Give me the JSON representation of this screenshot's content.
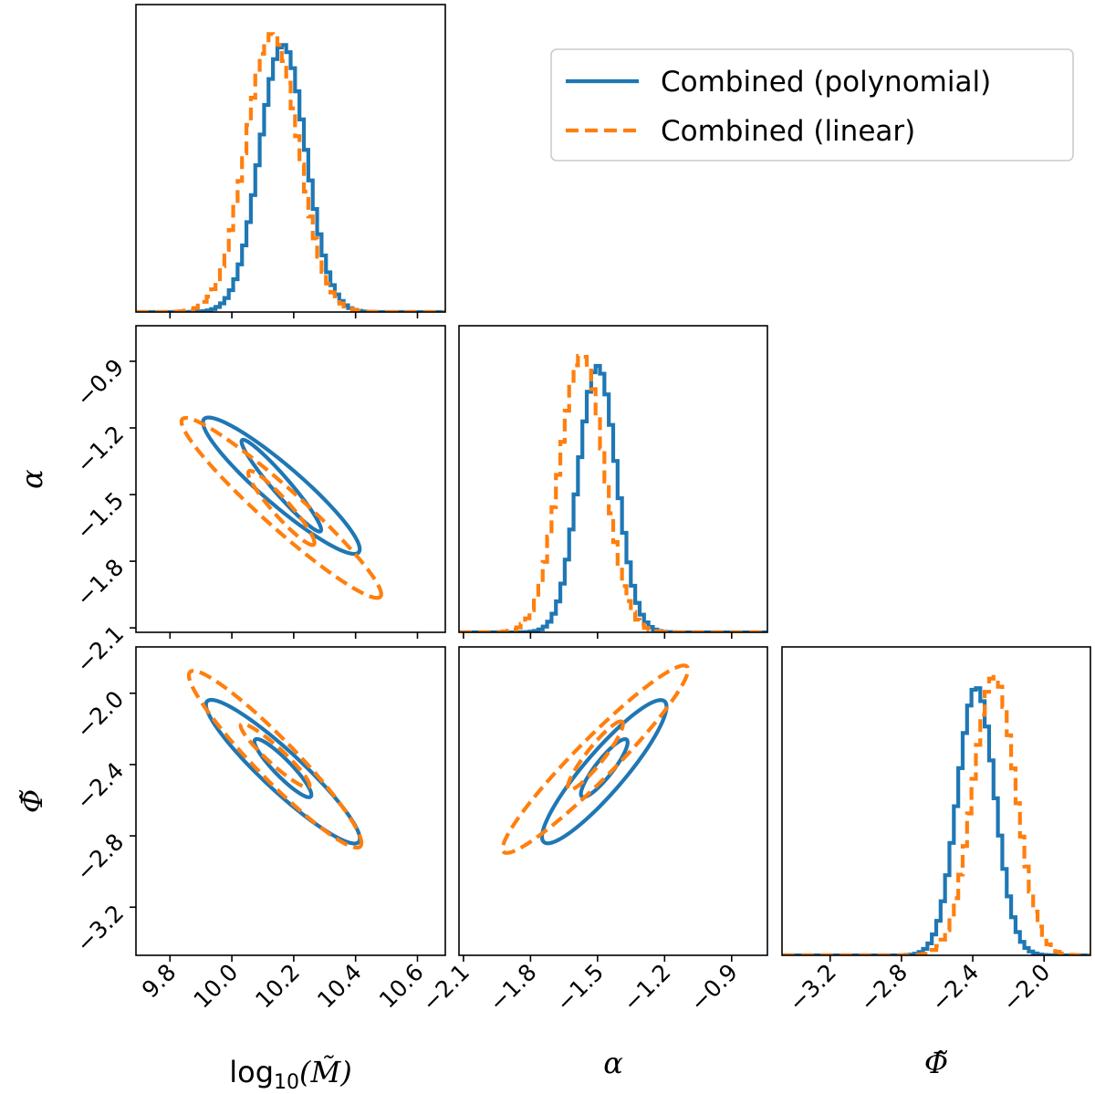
{
  "chart_data": {
    "type": "corner",
    "parameters": [
      {
        "key": "logM",
        "label_prefix": "log",
        "label_sub": "10",
        "label_main": "(M̃)",
        "range": [
          9.69,
          10.69
        ],
        "ticks": [
          "9.8",
          "10.0",
          "10.2",
          "10.4",
          "10.6"
        ],
        "tick_values": [
          9.8,
          10.0,
          10.2,
          10.4,
          10.6
        ]
      },
      {
        "key": "alpha",
        "label": "α",
        "range": [
          -2.12,
          -0.74
        ],
        "ticks": [
          "−2.1",
          "−1.8",
          "−1.5",
          "−1.2",
          "−0.9"
        ],
        "tick_values": [
          -2.1,
          -1.8,
          -1.5,
          -1.2,
          -0.9
        ]
      },
      {
        "key": "phi",
        "label": "Φ̃",
        "range": [
          -3.47,
          -1.74
        ],
        "ticks": [
          "−3.2",
          "−2.8",
          "−2.4",
          "−2.0"
        ],
        "tick_values": [
          -3.2,
          -2.8,
          -2.4,
          -2.0
        ]
      }
    ],
    "legend": {
      "placement": "top-right",
      "entries": [
        {
          "name": "Combined (polynomial)",
          "color": "#1f77b4",
          "style": "solid"
        },
        {
          "name": "Combined (linear)",
          "color": "#ff7f0e",
          "style": "dashed"
        }
      ]
    },
    "series": [
      {
        "name": "Combined (polynomial)",
        "color": "#1f77b4",
        "style": "solid",
        "marginals": [
          {
            "mean": 10.165,
            "sd": 0.075
          },
          {
            "mean": -1.5,
            "sd": 0.085
          },
          {
            "mean": -2.38,
            "sd": 0.105
          }
        ],
        "contours": [
          {
            "x": "logM",
            "y": "alpha",
            "levels": [
              {
                "cx": 10.16,
                "cy": -1.46,
                "rx": 0.08,
                "ry": 0.12,
                "angle": -0.71,
                "ex": 0.127,
                "ey": -0.205
              },
              {
                "cx": 10.16,
                "cy": -1.46,
                "rx": 0.17,
                "ry": 0.26,
                "angle": -0.71,
                "ex": 0.25,
                "ey": -0.3
              }
            ]
          },
          {
            "x": "logM",
            "y": "phi",
            "levels": [
              {
                "cx": 10.165,
                "cy": -2.42,
                "rx": 0.09,
                "ry": 0.14,
                "angle": -0.86,
                "ex": 0.09,
                "ey": -0.16
              },
              {
                "cx": 10.165,
                "cy": -2.44,
                "rx": 0.25,
                "ry": 0.39,
                "angle": -0.86,
                "ex": 0.245,
                "ey": -0.395
              }
            ]
          },
          {
            "x": "alpha",
            "y": "phi",
            "levels": [
              {
                "cx": -1.47,
                "cy": -2.42,
                "rx": 0.085,
                "ry": 0.14,
                "angle": 0.85,
                "ex": 0.1,
                "ey": 0.16
              },
              {
                "cx": -1.47,
                "cy": -2.44,
                "rx": 0.29,
                "ry": 0.39,
                "angle": 0.85,
                "ex": 0.27,
                "ey": 0.395
              }
            ]
          }
        ]
      },
      {
        "name": "Combined (linear)",
        "color": "#ff7f0e",
        "style": "dashed",
        "marginals": [
          {
            "mean": 10.13,
            "sd": 0.085
          },
          {
            "mean": -1.57,
            "sd": 0.1
          },
          {
            "mean": -2.28,
            "sd": 0.12
          }
        ],
        "contours": [
          {
            "x": "logM",
            "y": "alpha",
            "levels": [
              {
                "cx": 10.16,
                "cy": -1.56,
                "rx": 0.09,
                "ry": 0.14,
                "angle": -0.71,
                "ex": 0.105,
                "ey": -0.165
              },
              {
                "cx": 10.16,
                "cy": -1.56,
                "rx": 0.25,
                "ry": 0.36,
                "angle": -0.71,
                "ex": 0.32,
                "ey": -0.4
              }
            ]
          },
          {
            "x": "logM",
            "y": "phi",
            "levels": [
              {
                "cx": 10.14,
                "cy": -2.35,
                "rx": 0.1,
                "ry": 0.18,
                "angle": -0.86,
                "ex": 0.11,
                "ey": -0.175
              },
              {
                "cx": 10.14,
                "cy": -2.37,
                "rx": 0.28,
                "ry": 0.5,
                "angle": -0.86,
                "ex": 0.275,
                "ey": -0.49
              }
            ]
          },
          {
            "x": "alpha",
            "y": "phi",
            "levels": [
              {
                "cx": -1.51,
                "cy": -2.35,
                "rx": 0.1,
                "ry": 0.18,
                "angle": 0.85,
                "ex": 0.12,
                "ey": 0.19
              },
              {
                "cx": -1.51,
                "cy": -2.37,
                "rx": 0.4,
                "ry": 0.52,
                "angle": 0.85,
                "ex": 0.41,
                "ey": 0.52
              }
            ]
          }
        ]
      }
    ]
  }
}
